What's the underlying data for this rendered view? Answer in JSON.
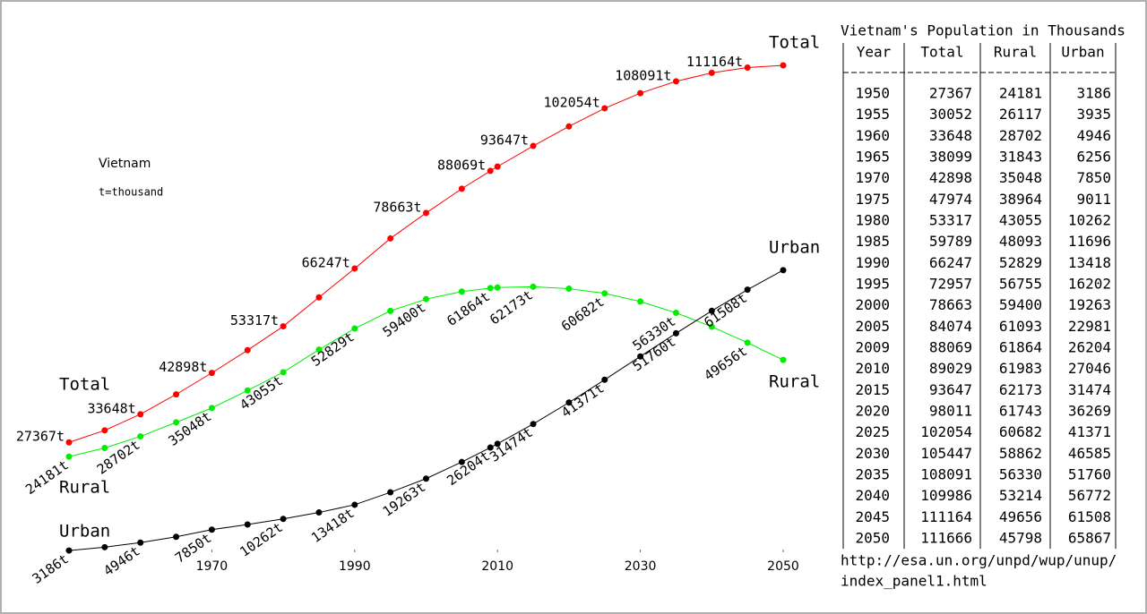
{
  "chart_data": {
    "type": "line",
    "annotations": [
      "Vietnam",
      "t=thousand"
    ],
    "x": [
      1950,
      1955,
      1960,
      1965,
      1970,
      1975,
      1980,
      1985,
      1990,
      1995,
      2000,
      2005,
      2009,
      2010,
      2015,
      2020,
      2025,
      2030,
      2035,
      2040,
      2045,
      2050
    ],
    "xlim": [
      1950,
      2050
    ],
    "xticks": [
      1970,
      1990,
      2010,
      2030,
      2050
    ],
    "series": [
      {
        "name": "Total",
        "color": "#ff0000",
        "values": [
          27367,
          30052,
          33648,
          38099,
          42898,
          47974,
          53317,
          59789,
          66247,
          72957,
          78663,
          84074,
          88069,
          89029,
          93647,
          98011,
          102054,
          105447,
          108091,
          109986,
          111164,
          111666
        ],
        "value_labels": [
          "27367t",
          null,
          "33648t",
          null,
          "42898t",
          null,
          "53317t",
          null,
          "66247t",
          null,
          "78663t",
          null,
          "88069t",
          null,
          "93647t",
          null,
          "102054t",
          null,
          "108091t",
          null,
          "111164t",
          null
        ]
      },
      {
        "name": "Rural",
        "color": "#00ee00",
        "values": [
          24181,
          26117,
          28702,
          31843,
          35048,
          38964,
          43055,
          48093,
          52829,
          56755,
          59400,
          61093,
          61864,
          61983,
          62173,
          61743,
          60682,
          58862,
          56330,
          53214,
          49656,
          45798
        ],
        "value_labels": [
          "24181t",
          null,
          "28702t",
          null,
          "35048t",
          null,
          "43055t",
          null,
          "52829t",
          null,
          "59400t",
          null,
          "61864t",
          null,
          "62173t",
          null,
          "60682t",
          null,
          "56330t",
          null,
          "49656t",
          null
        ]
      },
      {
        "name": "Urban",
        "color": "#000000",
        "values": [
          3186,
          3935,
          4946,
          6256,
          7850,
          9011,
          10262,
          11696,
          13418,
          16202,
          19263,
          22981,
          26204,
          27046,
          31474,
          36269,
          41371,
          46585,
          51760,
          56772,
          61508,
          65867
        ],
        "value_labels": [
          "3186t",
          null,
          "4946t",
          null,
          "7850t",
          null,
          "10262t",
          null,
          "13418t",
          null,
          "19263t",
          null,
          "26204t",
          null,
          "31474t",
          null,
          "41371t",
          null,
          "51760t",
          null,
          "61508t",
          null
        ]
      }
    ]
  },
  "table": {
    "title": "Vietnam's Population in Thousands",
    "columns": [
      "Year",
      "Total",
      "Rural",
      "Urban"
    ],
    "source": [
      "http://esa.un.org/unpd/wup/unup/",
      "index_panel1.html"
    ]
  }
}
